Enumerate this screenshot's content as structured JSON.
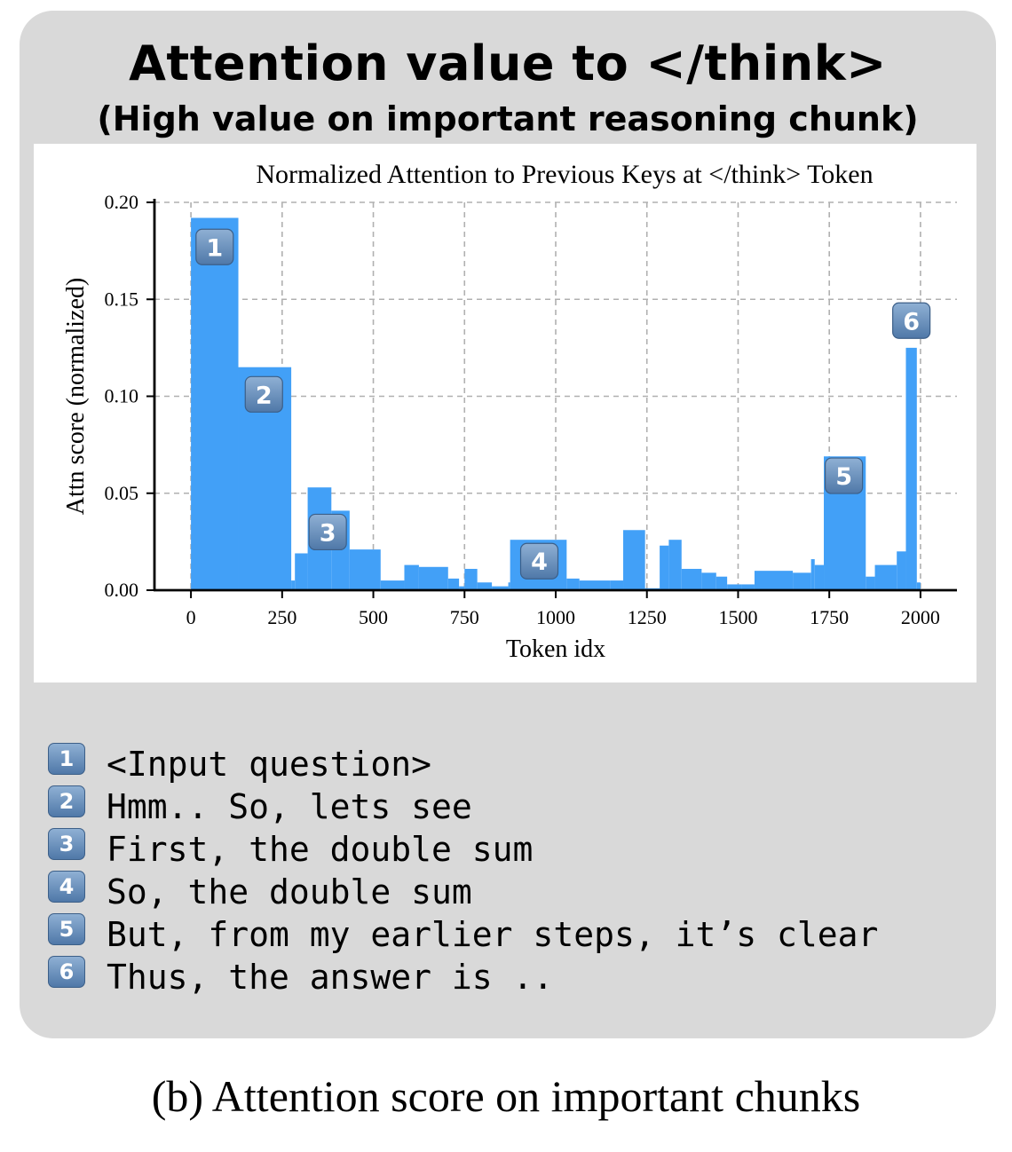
{
  "panel": {
    "title": "Attention value to </think>",
    "subtitle": "(High value on important reasoning chunk)"
  },
  "chart_data": {
    "type": "bar",
    "title": "Normalized Attention to Previous Keys at </think> Token",
    "xlabel": "Token idx",
    "ylabel": "Attn score (normalized)",
    "xlim": [
      -100,
      2100
    ],
    "ylim": [
      0,
      0.2
    ],
    "xticks": [
      0,
      250,
      500,
      750,
      1000,
      1250,
      1500,
      1750,
      2000
    ],
    "xtick_labels": [
      "0",
      "250",
      "500",
      "750",
      "1000",
      "1250",
      "1500",
      "1750",
      "2000"
    ],
    "yticks": [
      0,
      0.05,
      0.1,
      0.15,
      0.2
    ],
    "ytick_labels": [
      "0.00",
      "0.05",
      "0.10",
      "0.15",
      "0.20"
    ],
    "grid": true,
    "bar_color": "#42a0f7",
    "bars": [
      {
        "x0": 0,
        "x1": 130,
        "value": 0.192
      },
      {
        "x0": 130,
        "x1": 275,
        "value": 0.115
      },
      {
        "x0": 275,
        "x1": 285,
        "value": 0.005
      },
      {
        "x0": 285,
        "x1": 320,
        "value": 0.019
      },
      {
        "x0": 320,
        "x1": 385,
        "value": 0.053
      },
      {
        "x0": 385,
        "x1": 435,
        "value": 0.041
      },
      {
        "x0": 435,
        "x1": 520,
        "value": 0.021
      },
      {
        "x0": 520,
        "x1": 585,
        "value": 0.005
      },
      {
        "x0": 585,
        "x1": 625,
        "value": 0.013
      },
      {
        "x0": 625,
        "x1": 705,
        "value": 0.012
      },
      {
        "x0": 705,
        "x1": 735,
        "value": 0.006
      },
      {
        "x0": 735,
        "x1": 750,
        "value": 0.002
      },
      {
        "x0": 750,
        "x1": 785,
        "value": 0.011
      },
      {
        "x0": 785,
        "x1": 825,
        "value": 0.004
      },
      {
        "x0": 825,
        "x1": 870,
        "value": 0.002
      },
      {
        "x0": 870,
        "x1": 875,
        "value": 0.004
      },
      {
        "x0": 875,
        "x1": 1030,
        "value": 0.026
      },
      {
        "x0": 1030,
        "x1": 1065,
        "value": 0.006
      },
      {
        "x0": 1065,
        "x1": 1150,
        "value": 0.005
      },
      {
        "x0": 1150,
        "x1": 1185,
        "value": 0.005
      },
      {
        "x0": 1185,
        "x1": 1245,
        "value": 0.031
      },
      {
        "x0": 1245,
        "x1": 1285,
        "value": 0.001
      },
      {
        "x0": 1285,
        "x1": 1310,
        "value": 0.023
      },
      {
        "x0": 1310,
        "x1": 1345,
        "value": 0.026
      },
      {
        "x0": 1345,
        "x1": 1400,
        "value": 0.011
      },
      {
        "x0": 1400,
        "x1": 1440,
        "value": 0.009
      },
      {
        "x0": 1440,
        "x1": 1470,
        "value": 0.007
      },
      {
        "x0": 1470,
        "x1": 1510,
        "value": 0.003
      },
      {
        "x0": 1510,
        "x1": 1545,
        "value": 0.003
      },
      {
        "x0": 1545,
        "x1": 1650,
        "value": 0.01
      },
      {
        "x0": 1650,
        "x1": 1700,
        "value": 0.009
      },
      {
        "x0": 1700,
        "x1": 1710,
        "value": 0.016
      },
      {
        "x0": 1710,
        "x1": 1735,
        "value": 0.013
      },
      {
        "x0": 1735,
        "x1": 1850,
        "value": 0.069
      },
      {
        "x0": 1850,
        "x1": 1875,
        "value": 0.007
      },
      {
        "x0": 1875,
        "x1": 1935,
        "value": 0.013
      },
      {
        "x0": 1935,
        "x1": 1960,
        "value": 0.02
      },
      {
        "x0": 1960,
        "x1": 1990,
        "value": 0.125
      },
      {
        "x0": 1990,
        "x1": 2000,
        "value": 0.004
      }
    ],
    "markers": [
      {
        "label": "1",
        "x": 65,
        "y": 0.177
      },
      {
        "label": "2",
        "x": 200,
        "y": 0.101
      },
      {
        "label": "3",
        "x": 375,
        "y": 0.03
      },
      {
        "label": "4",
        "x": 955,
        "y": 0.015
      },
      {
        "label": "5",
        "x": 1790,
        "y": 0.059
      },
      {
        "label": "6",
        "x": 1975,
        "y": 0.139
      }
    ]
  },
  "legend": {
    "items": [
      {
        "label": "1",
        "text": "<Input question>"
      },
      {
        "label": "2",
        "text": "Hmm.. So, lets see"
      },
      {
        "label": "3",
        "text": "First, the double sum"
      },
      {
        "label": "4",
        "text": "So, the double sum"
      },
      {
        "label": "5",
        "text": "But, from my earlier steps, it’s clear"
      },
      {
        "label": "6",
        "text": "Thus, the answer is .."
      }
    ]
  },
  "caption": "(b) Attention score on important chunks",
  "colors": {
    "panel_bg": "#d9d9d9",
    "badge_top": "#8fb0d4",
    "badge_bottom": "#4f78a8",
    "grid": "#b0b0b0"
  }
}
